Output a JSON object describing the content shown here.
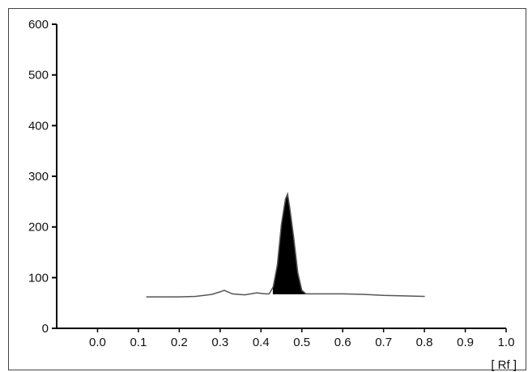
{
  "chart_data": {
    "type": "line",
    "title": "",
    "xlabel": "[ Rf ]",
    "ylabel": "",
    "xlim": [
      -0.1,
      1.0
    ],
    "ylim": [
      0,
      600
    ],
    "x_ticks": [
      0.0,
      0.1,
      0.2,
      0.3,
      0.4,
      0.5,
      0.6,
      0.7,
      0.8,
      0.9,
      1.0
    ],
    "x_tick_labels": [
      "0.0",
      "0.1",
      "0.2",
      "0.3",
      "0.4",
      "0.5",
      "0.6",
      "0.7",
      "0.8",
      "0.9",
      "1.0"
    ],
    "y_ticks": [
      0,
      100,
      200,
      300,
      400,
      500,
      600
    ],
    "y_tick_labels": [
      "0",
      "100",
      "200",
      "300",
      "400",
      "500",
      "600"
    ],
    "grid": false,
    "legend": "none",
    "series": [
      {
        "x": [
          0.12,
          0.16,
          0.2,
          0.24,
          0.28,
          0.3,
          0.31,
          0.33,
          0.36,
          0.39,
          0.41,
          0.42,
          0.43,
          0.44,
          0.45,
          0.46,
          0.465,
          0.47,
          0.48,
          0.49,
          0.5,
          0.51,
          0.52,
          0.55,
          0.6,
          0.65,
          0.7,
          0.75,
          0.8
        ],
        "y": [
          62,
          62,
          62,
          63,
          67,
          72,
          75,
          68,
          66,
          70,
          68,
          68,
          82,
          125,
          205,
          255,
          265,
          240,
          180,
          110,
          75,
          68,
          68,
          68,
          68,
          67,
          65,
          64,
          63
        ]
      }
    ],
    "filled_peak_range": [
      0.43,
      0.51
    ],
    "colors": {
      "line": "#555555",
      "peak_fill": "#000000",
      "axis": "#000000"
    }
  }
}
